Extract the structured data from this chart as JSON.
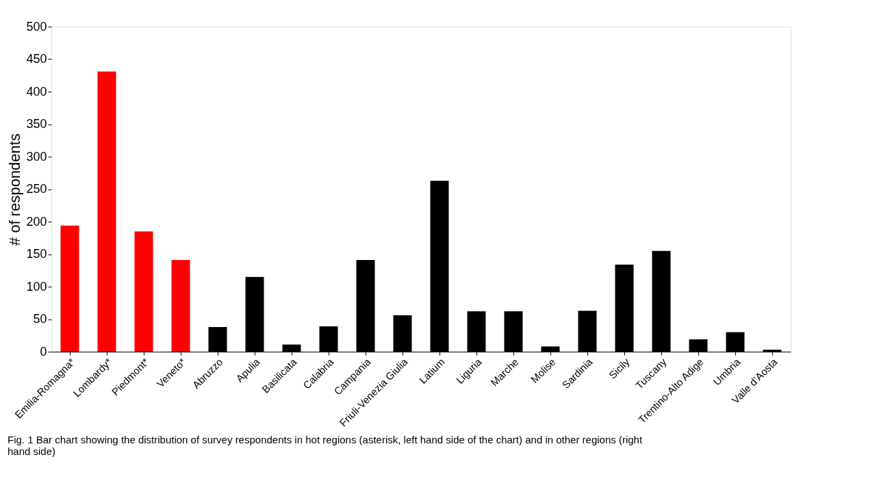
{
  "chart_data": {
    "type": "bar",
    "ylabel": "# of respondents",
    "categories": [
      "Emilia-Romagna*",
      "Lombardy*",
      "Piedmont*",
      "Veneto*",
      "Abruzzo",
      "Apulia",
      "Basilicata",
      "Calabria",
      "Campania",
      "Friuli-Venezia Giulia",
      "Latium",
      "Liguria",
      "Marche",
      "Molise",
      "Sardinia",
      "Sicily",
      "Tuscany",
      "Trentino-Alto Adige",
      "Umbria",
      "Valle d’Aosta"
    ],
    "values": [
      194,
      431,
      185,
      141,
      38,
      115,
      11,
      39,
      141,
      56,
      263,
      62,
      62,
      8,
      63,
      134,
      155,
      19,
      30,
      3
    ],
    "colors": [
      "#ff0000",
      "#ff0000",
      "#ff0000",
      "#ff0000",
      "#000000",
      "#000000",
      "#000000",
      "#000000",
      "#000000",
      "#000000",
      "#000000",
      "#000000",
      "#000000",
      "#000000",
      "#000000",
      "#000000",
      "#000000",
      "#000000",
      "#000000",
      "#000000"
    ],
    "ylim": [
      0,
      500
    ],
    "yticks": [
      0,
      50,
      100,
      150,
      200,
      250,
      300,
      350,
      400,
      450,
      500
    ],
    "grid": false,
    "annotations": [
      "Fig. 1 Bar chart showing the distribution of survey respondents in hot regions (asterisk, left hand side of the chart) and in other regions (right hand side)"
    ]
  }
}
